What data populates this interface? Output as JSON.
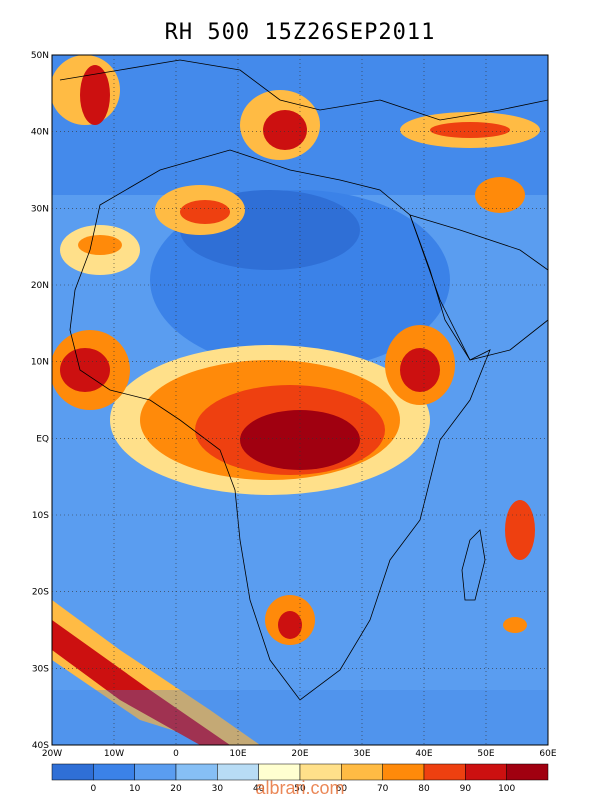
{
  "title": "RH 500 15Z26SEP2011",
  "lat_labels": [
    "50N",
    "40N",
    "30N",
    "20N",
    "10N",
    "EQ",
    "10S",
    "20S",
    "30S",
    "40S"
  ],
  "lon_labels": [
    "20W",
    "10W",
    "0",
    "10E",
    "20E",
    "30E",
    "40E",
    "50E",
    "60E"
  ],
  "colorbar": {
    "colors": [
      "#2f6fd6",
      "#3b82e8",
      "#5a9df0",
      "#86bff5",
      "#b8dcf5",
      "#ffffd0",
      "#ffe08a",
      "#ffbb44",
      "#ff8a0a",
      "#ee4010",
      "#cc1010",
      "#a00010"
    ],
    "labels": [
      "0",
      "10",
      "20",
      "30",
      "40",
      "50",
      "60",
      "70",
      "80",
      "90",
      "100"
    ]
  },
  "watermark": "albrari.com",
  "palette": {
    "ocean_base": "#5a9df0",
    "land_base": "#3b82e8",
    "moist": "#ff8a0a",
    "wet": "#cc1010"
  }
}
